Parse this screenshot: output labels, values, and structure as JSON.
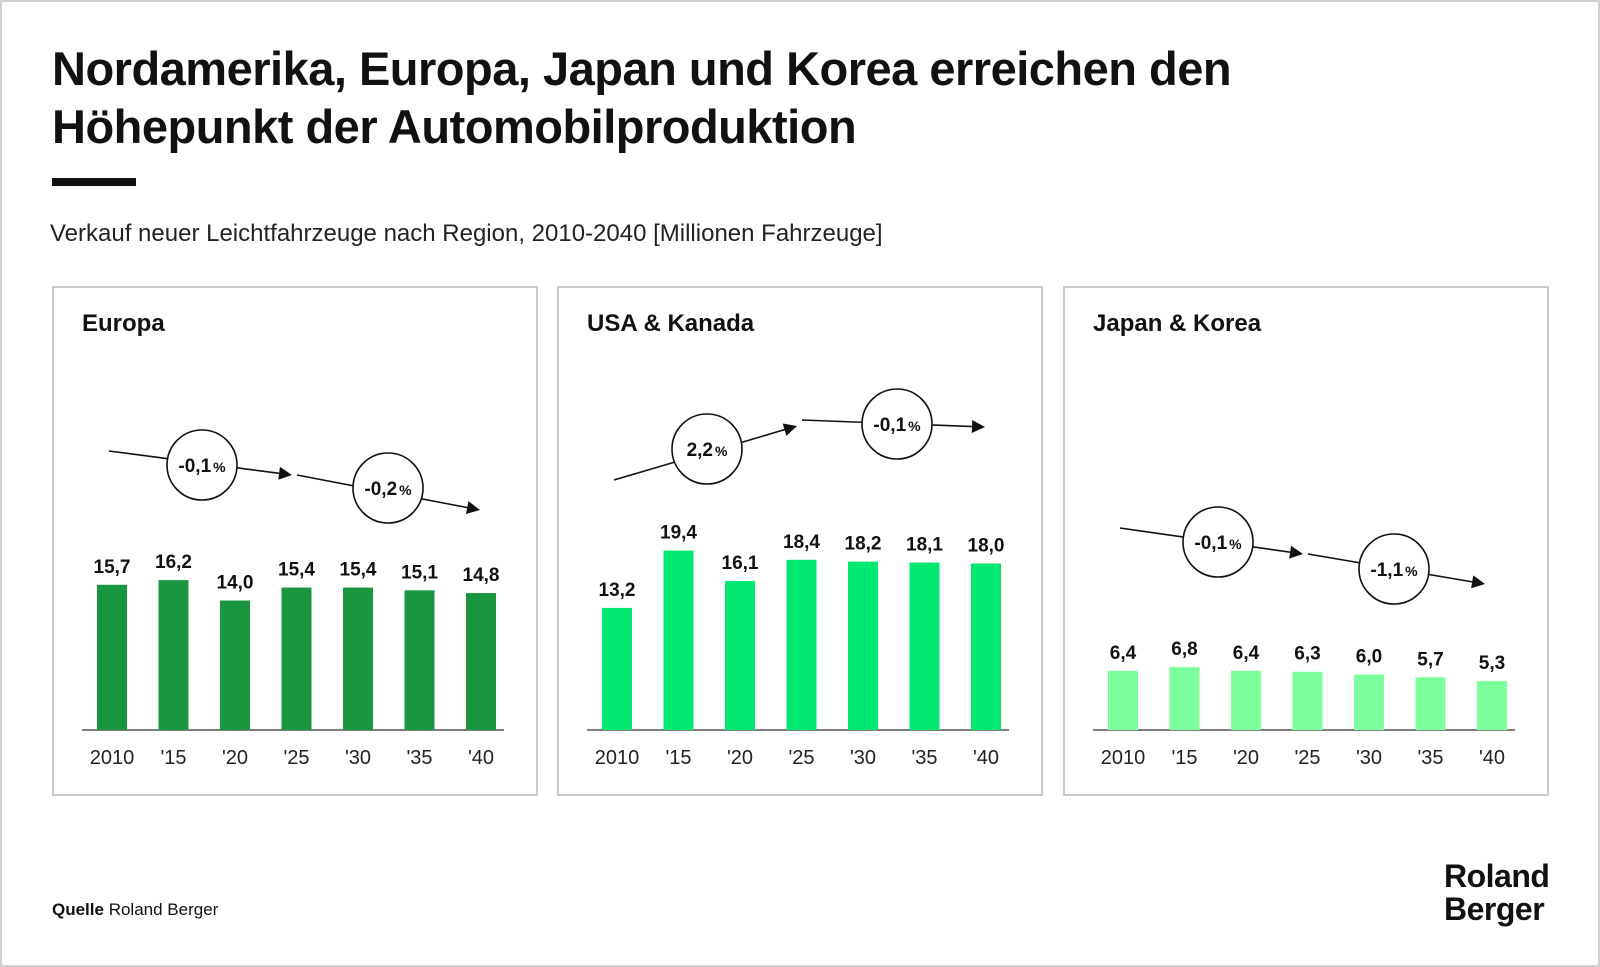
{
  "title_lines": [
    "Nordamerika, Europa, Japan und Korea erreichen den",
    "Höhepunkt der Automobilproduktion"
  ],
  "subtitle": "Verkauf neuer Leichtfahrzeuge nach Region, 2010-2040 [Millionen Fahrzeuge]",
  "source_label": "Quelle",
  "source_text": "Roland Berger",
  "logo_lines": [
    "Roland",
    "Berger"
  ],
  "chart_data": [
    {
      "type": "bar",
      "title": "Europa",
      "categories": [
        "2010",
        "'15",
        "'20",
        "'25",
        "'30",
        "'35",
        "'40"
      ],
      "values": [
        15.7,
        16.2,
        14.0,
        15.4,
        15.4,
        15.1,
        14.8
      ],
      "value_labels": [
        "15,7",
        "16,2",
        "14,0",
        "15,4",
        "15,4",
        "15,1",
        "14,8"
      ],
      "color": "#1a9641",
      "ylim": [
        0,
        22
      ],
      "cagr": [
        {
          "label": "-0,1%",
          "value": "-0,1",
          "unit": "%",
          "from": "2010",
          "to": "'25"
        },
        {
          "label": "-0,2%",
          "value": "-0,2",
          "unit": "%",
          "from": "'25",
          "to": "'40"
        }
      ]
    },
    {
      "type": "bar",
      "title": "USA & Kanada",
      "categories": [
        "2010",
        "'15",
        "'20",
        "'25",
        "'30",
        "'35",
        "'40"
      ],
      "values": [
        13.2,
        19.4,
        16.1,
        18.4,
        18.2,
        18.1,
        18.0
      ],
      "value_labels": [
        "13,2",
        "19,4",
        "16,1",
        "18,4",
        "18,2",
        "18,1",
        "18,0"
      ],
      "color": "#00e86f",
      "ylim": [
        0,
        22
      ],
      "cagr": [
        {
          "label": "2,2%",
          "value": "2,2",
          "unit": "%",
          "from": "2010",
          "to": "'25"
        },
        {
          "label": "-0,1%",
          "value": "-0,1",
          "unit": "%",
          "from": "'25",
          "to": "'40"
        }
      ]
    },
    {
      "type": "bar",
      "title": "Japan & Korea",
      "categories": [
        "2010",
        "'15",
        "'20",
        "'25",
        "'30",
        "'35",
        "'40"
      ],
      "values": [
        6.4,
        6.8,
        6.4,
        6.3,
        6.0,
        5.7,
        5.3
      ],
      "value_labels": [
        "6,4",
        "6,8",
        "6,4",
        "6,3",
        "6,0",
        "5,7",
        "5,3"
      ],
      "color": "#7dff9d",
      "ylim": [
        0,
        22
      ],
      "cagr": [
        {
          "label": "-0,1%",
          "value": "-0,1",
          "unit": "%",
          "from": "2010",
          "to": "'25"
        },
        {
          "label": "-1,1%",
          "value": "-1,1",
          "unit": "%",
          "from": "'25",
          "to": "'40"
        }
      ]
    }
  ]
}
